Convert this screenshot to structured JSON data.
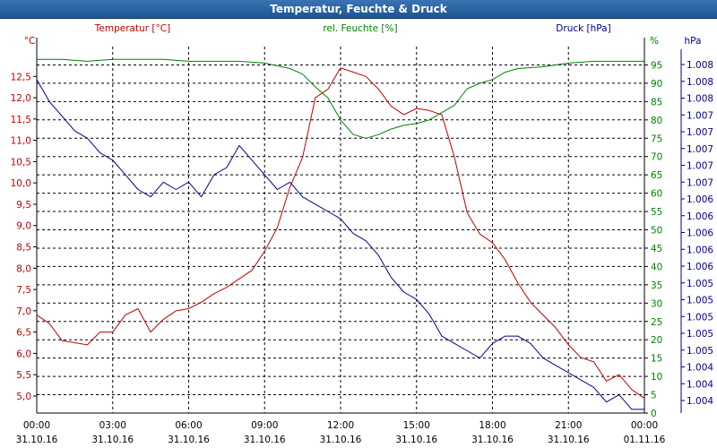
{
  "window": {
    "title": "Temperatur, Feuchte & Druck"
  },
  "colors": {
    "temperature": "#c00000",
    "humidity": "#008000",
    "pressure": "#00008b",
    "axis": "#000000",
    "grid": "#000000"
  },
  "chart_data": {
    "type": "line",
    "title": "Temperatur, Feuchte & Druck",
    "grid": true,
    "x": {
      "ticks": [
        {
          "time": "00:00",
          "date": "31.10.16"
        },
        {
          "time": "03:00",
          "date": "31.10.16"
        },
        {
          "time": "06:00",
          "date": "31.10.16"
        },
        {
          "time": "09:00",
          "date": "31.10.16"
        },
        {
          "time": "12:00",
          "date": "31.10.16"
        },
        {
          "time": "15:00",
          "date": "31.10.16"
        },
        {
          "time": "18:00",
          "date": "31.10.16"
        },
        {
          "time": "21:00",
          "date": "31.10.16"
        },
        {
          "time": "00:00",
          "date": "01.11.16"
        }
      ],
      "range_hours": [
        0,
        24
      ]
    },
    "axes": {
      "temperature": {
        "unit": "°C",
        "series_label": "Temperatur [°C]",
        "ylim": [
          4.6,
          13.2
        ],
        "tick_labels": [
          "5,0",
          "5,5",
          "6,0",
          "6,5",
          "7,0",
          "7,5",
          "8,0",
          "8,5",
          "9,0",
          "9,5",
          "10,0",
          "10,5",
          "11,0",
          "11,5",
          "12,0",
          "12,5"
        ]
      },
      "humidity": {
        "unit": "%",
        "series_label": "rel. Feuchte [%]",
        "ylim": [
          0,
          100
        ],
        "tick_labels": [
          "0",
          "5",
          "10",
          "15",
          "20",
          "25",
          "30",
          "35",
          "40",
          "45",
          "50",
          "55",
          "60",
          "65",
          "70",
          "75",
          "80",
          "85",
          "90",
          "95"
        ]
      },
      "pressure": {
        "unit": "hPa",
        "series_label": "Druck [hPa]",
        "ylim": [
          1003.55,
          1008.55
        ],
        "tick_labels": [
          "1.004",
          "1.004",
          "1.004",
          "1.005",
          "1.005",
          "1.005",
          "1.005",
          "1.005",
          "1.006",
          "1.006",
          "1.006",
          "1.006",
          "1.006",
          "1.007",
          "1.007",
          "1.007",
          "1.007",
          "1.007",
          "1.008",
          "1.008",
          "1.008"
        ]
      }
    },
    "series": [
      {
        "name": "Temperatur [°C]",
        "axis": "temperature",
        "x": [
          0,
          0.5,
          1,
          1.5,
          2,
          2.5,
          3,
          3.5,
          4,
          4.5,
          5,
          5.5,
          6,
          6.5,
          7,
          7.5,
          8,
          8.5,
          9,
          9.5,
          10,
          10.5,
          11,
          11.5,
          12,
          12.5,
          13,
          13.5,
          14,
          14.5,
          15,
          15.5,
          16,
          16.5,
          17,
          17.5,
          18,
          18.5,
          19,
          19.5,
          20,
          20.5,
          21,
          21.5,
          22,
          22.5,
          23,
          23.5,
          24
        ],
        "values": [
          6.9,
          6.7,
          6.3,
          6.25,
          6.2,
          6.5,
          6.5,
          6.9,
          7.05,
          6.5,
          6.8,
          7.0,
          7.05,
          7.2,
          7.4,
          7.55,
          7.75,
          7.95,
          8.4,
          8.95,
          9.9,
          10.6,
          12.0,
          12.2,
          12.7,
          12.6,
          12.5,
          12.2,
          11.8,
          11.6,
          11.75,
          11.7,
          11.6,
          10.6,
          9.3,
          8.8,
          8.6,
          8.2,
          7.65,
          7.2,
          6.9,
          6.6,
          6.2,
          5.9,
          5.8,
          5.35,
          5.5,
          5.15,
          4.95
        ]
      },
      {
        "name": "rel. Feuchte [%]",
        "axis": "humidity",
        "x": [
          0,
          1,
          2,
          3,
          4,
          5,
          6,
          7,
          8,
          9,
          10,
          10.5,
          11,
          11.5,
          12,
          12.5,
          13,
          13.5,
          14,
          14.5,
          15,
          15.5,
          16,
          16.5,
          17,
          17.5,
          18,
          18.5,
          19,
          20,
          21,
          22,
          23,
          24
        ],
        "values": [
          96.5,
          96.5,
          96.0,
          96.5,
          96.5,
          96.5,
          96.0,
          96.0,
          96.0,
          95.5,
          94.0,
          92.5,
          89.0,
          86.0,
          80.0,
          76.0,
          75.0,
          76.0,
          77.5,
          78.5,
          79.0,
          80.0,
          82.0,
          84.0,
          88.5,
          90.0,
          91.0,
          93.0,
          94.0,
          94.5,
          95.5,
          96.0,
          96.0,
          96.0
        ]
      },
      {
        "name": "Druck [hPa]",
        "axis": "pressure",
        "x": [
          0,
          0.5,
          1,
          1.5,
          2,
          2.5,
          3,
          3.5,
          4,
          4.5,
          5,
          5.5,
          6,
          6.5,
          7,
          7.5,
          8,
          8.5,
          9,
          9.5,
          10,
          10.5,
          11,
          11.5,
          12,
          12.5,
          13,
          13.5,
          14,
          14.5,
          15,
          15.5,
          16,
          16.5,
          17,
          17.5,
          18,
          18.5,
          19,
          19.5,
          20,
          20.5,
          21,
          21.5,
          22,
          22.5,
          23,
          23.5,
          24
        ],
        "values": [
          1008.1,
          1007.8,
          1007.6,
          1007.4,
          1007.3,
          1007.1,
          1007.0,
          1006.8,
          1006.6,
          1006.5,
          1006.7,
          1006.6,
          1006.7,
          1006.5,
          1006.8,
          1006.9,
          1007.2,
          1007.0,
          1006.8,
          1006.6,
          1006.7,
          1006.5,
          1006.4,
          1006.3,
          1006.2,
          1006.0,
          1005.9,
          1005.7,
          1005.4,
          1005.2,
          1005.1,
          1004.9,
          1004.6,
          1004.5,
          1004.4,
          1004.3,
          1004.5,
          1004.6,
          1004.6,
          1004.5,
          1004.3,
          1004.2,
          1004.1,
          1004.0,
          1003.9,
          1003.7,
          1003.8,
          1003.6,
          1003.6
        ]
      }
    ]
  }
}
